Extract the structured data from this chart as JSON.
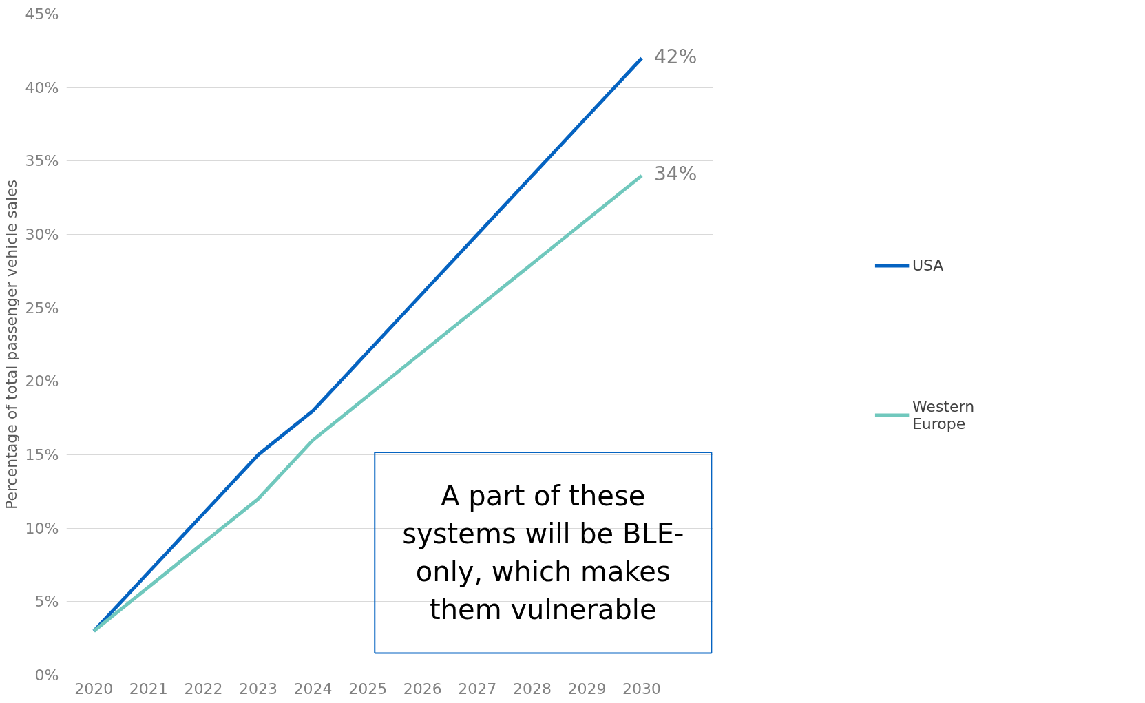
{
  "chart_data": {
    "type": "line",
    "ylabel": "Percentage of total passenger vehicle sales",
    "categories": [
      "2020",
      "2021",
      "2022",
      "2023",
      "2024",
      "2025",
      "2026",
      "2027",
      "2028",
      "2029",
      "2030"
    ],
    "series": [
      {
        "name": "USA",
        "color": "#0563c1",
        "values": [
          3,
          7,
          11,
          15,
          18,
          22,
          26,
          30,
          34,
          38,
          42
        ],
        "value_labels": [
          null,
          null,
          null,
          null,
          null,
          null,
          null,
          null,
          null,
          null,
          "42%"
        ]
      },
      {
        "name": "Western Europe",
        "color": "#70c8bd",
        "values": [
          3,
          6,
          9,
          12,
          16,
          19,
          22,
          25,
          28,
          31,
          34
        ],
        "value_labels": [
          null,
          null,
          null,
          null,
          null,
          null,
          null,
          null,
          null,
          null,
          "34%"
        ]
      }
    ],
    "ylim": [
      0,
      45
    ],
    "yticks": [
      {
        "value": 0,
        "label": "0%"
      },
      {
        "value": 5,
        "label": "5%"
      },
      {
        "value": 10,
        "label": "10%"
      },
      {
        "value": 15,
        "label": "15%"
      },
      {
        "value": 20,
        "label": "20%"
      },
      {
        "value": 25,
        "label": "25%"
      },
      {
        "value": 30,
        "label": "30%"
      },
      {
        "value": 35,
        "label": "35%"
      },
      {
        "value": 40,
        "label": "40%"
      },
      {
        "value": 45,
        "label": "45%"
      }
    ],
    "grid": "y",
    "legend": "right",
    "marker": "none",
    "line_style": "solid",
    "annotations": [
      "A part of these systems will be BLE-only, which makes them vulnerable"
    ]
  }
}
